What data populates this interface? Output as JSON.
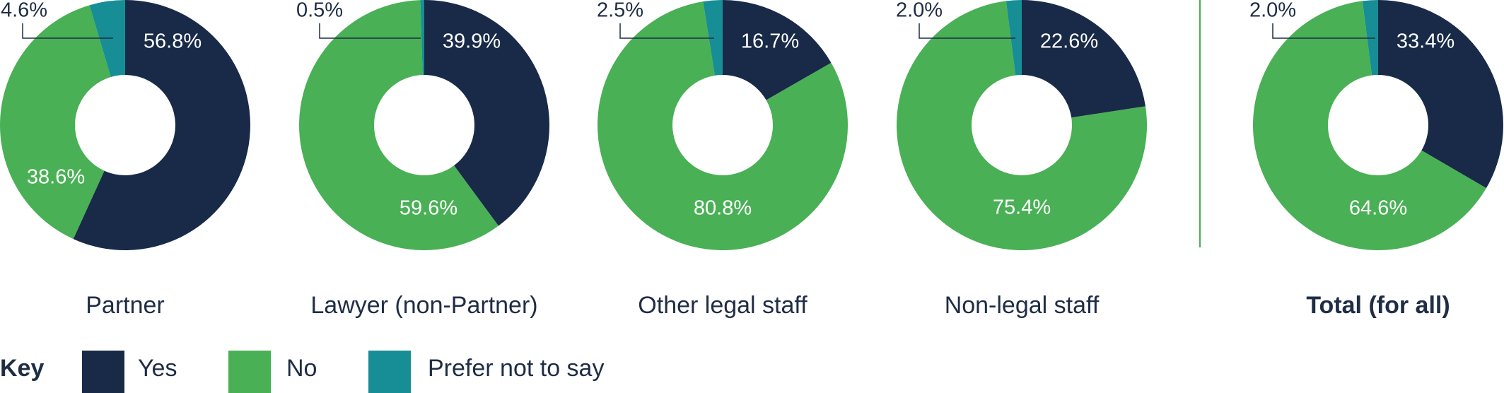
{
  "legend": {
    "title": "Key",
    "items": [
      {
        "label": "Yes",
        "color": "#182a48"
      },
      {
        "label": "No",
        "color": "#49b055"
      },
      {
        "label": "Prefer not to say",
        "color": "#178e95"
      }
    ]
  },
  "chart_data": [
    {
      "type": "pie",
      "style": "donut",
      "title": "Partner",
      "categories": [
        "Yes",
        "No",
        "Prefer not to say"
      ],
      "values": [
        56.8,
        38.6,
        4.6
      ],
      "labels": [
        "56.8%",
        "38.6%",
        "4.6%"
      ]
    },
    {
      "type": "pie",
      "style": "donut",
      "title": "Lawyer (non-Partner)",
      "categories": [
        "Yes",
        "No",
        "Prefer not to say"
      ],
      "values": [
        39.9,
        59.6,
        0.5
      ],
      "labels": [
        "39.9%",
        "59.6%",
        "0.5%"
      ]
    },
    {
      "type": "pie",
      "style": "donut",
      "title": "Other legal staff",
      "categories": [
        "Yes",
        "No",
        "Prefer not to say"
      ],
      "values": [
        16.7,
        80.8,
        2.5
      ],
      "labels": [
        "16.7%",
        "80.8%",
        "2.5%"
      ]
    },
    {
      "type": "pie",
      "style": "donut",
      "title": "Non-legal staff",
      "categories": [
        "Yes",
        "No",
        "Prefer not to say"
      ],
      "values": [
        22.6,
        75.4,
        2.0
      ],
      "labels": [
        "22.6%",
        "75.4%",
        "2.0%"
      ]
    },
    {
      "type": "pie",
      "style": "donut",
      "title": "Total (for all)",
      "title_bold": true,
      "categories": [
        "Yes",
        "No",
        "Prefer not to say"
      ],
      "values": [
        33.4,
        64.6,
        2.0
      ],
      "labels": [
        "33.4%",
        "64.6%",
        "2.0%"
      ]
    }
  ]
}
